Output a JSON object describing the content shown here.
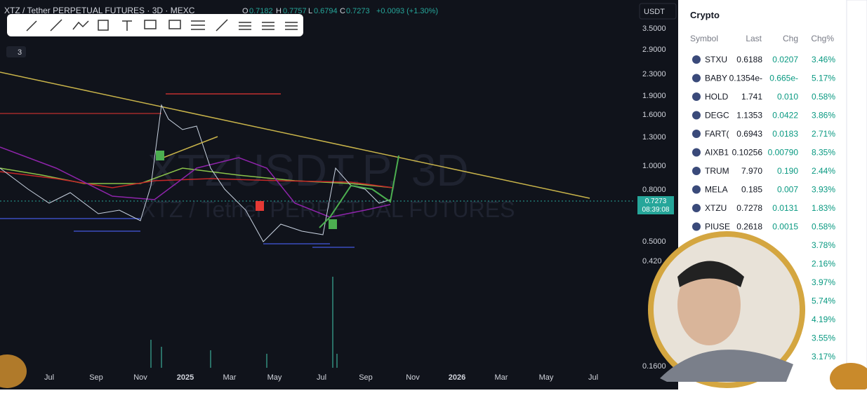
{
  "header": {
    "title": "XTZ / Tether PERPETUAL FUTURES · 3D · MEXC",
    "o_label": "O",
    "open": "0.7182",
    "h_label": "H",
    "high": "0.7757",
    "l_label": "L",
    "low": "0.6794",
    "c_label": "C",
    "close": "0.7273",
    "change": "+0.0093 (+1.30%)",
    "currency": "USDT",
    "indicators": "3"
  },
  "watermark": {
    "symbol": "XTZUSDT.P, 3D",
    "name": "XTZ / Tether PERPETUAL FUTURES"
  },
  "price_axis": [
    "3.5000",
    "2.9000",
    "2.3000",
    "1.9000",
    "1.6000",
    "1.3000",
    "1.0000",
    "0.8000",
    "0.5000",
    "0.420",
    "0.1600"
  ],
  "price_tag": {
    "price": "0.7273",
    "countdown": "08:39:08"
  },
  "time_axis": [
    "Jul",
    "Sep",
    "Nov",
    "2025",
    "Mar",
    "May",
    "Jul",
    "Sep",
    "Nov",
    "2026",
    "Mar",
    "May",
    "Jul"
  ],
  "watchlist": {
    "title": "Crypto",
    "columns": [
      "Symbol",
      "Last",
      "Chg",
      "Chg%"
    ],
    "rows": [
      {
        "symbol": "STXU",
        "last": "0.6188",
        "chg": "0.0207",
        "chgpct": "3.46%"
      },
      {
        "symbol": "BABY",
        "last": "0.1354e-",
        "chg": "0.665e-",
        "chgpct": "5.17%"
      },
      {
        "symbol": "HOLD",
        "last": "1.741",
        "chg": "0.010",
        "chgpct": "0.58%"
      },
      {
        "symbol": "DEGC",
        "last": "1.1353",
        "chg": "0.0422",
        "chgpct": "3.86%"
      },
      {
        "symbol": "FART(",
        "last": "0.6943",
        "chg": "0.0183",
        "chgpct": "2.71%"
      },
      {
        "symbol": "AIXB1",
        "last": "0.10256",
        "chg": "0.00790",
        "chgpct": "8.35%"
      },
      {
        "symbol": "TRUM",
        "last": "7.970",
        "chg": "0.190",
        "chgpct": "2.44%"
      },
      {
        "symbol": "MELA",
        "last": "0.185",
        "chg": "0.007",
        "chgpct": "3.93%"
      },
      {
        "symbol": "XTZU",
        "last": "0.7278",
        "chg": "0.0131",
        "chgpct": "1.83%"
      },
      {
        "symbol": "PIUSE",
        "last": "0.2618",
        "chg": "0.0015",
        "chgpct": "0.58%"
      },
      {
        "chgpct": "3.78%"
      },
      {
        "chgpct": "2.16%"
      },
      {
        "chgpct": "3.97%"
      },
      {
        "chgpct": "5.74%"
      },
      {
        "chgpct": "4.19%"
      },
      {
        "chgpct": "3.55%"
      },
      {
        "chgpct": "3.17%"
      }
    ]
  }
}
